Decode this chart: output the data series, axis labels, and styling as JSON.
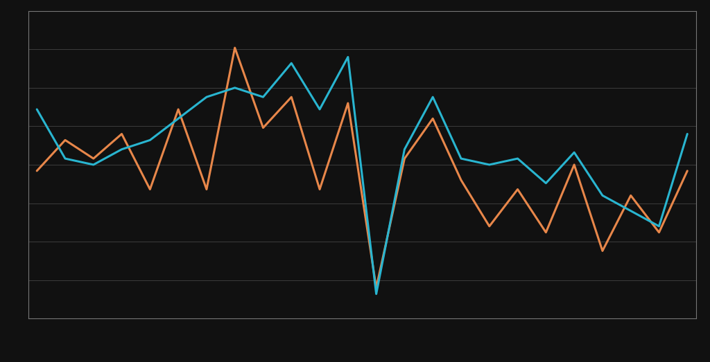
{
  "orange_y": [
    48,
    58,
    52,
    60,
    42,
    68,
    42,
    88,
    62,
    72,
    42,
    70,
    10,
    52,
    65,
    45,
    30,
    42,
    28,
    50,
    22,
    40,
    28,
    48
  ],
  "blue_y": [
    68,
    52,
    50,
    55,
    58,
    65,
    72,
    75,
    72,
    83,
    68,
    85,
    8,
    55,
    72,
    52,
    50,
    52,
    44,
    54,
    40,
    35,
    30,
    60
  ],
  "orange_color": "#E8874A",
  "blue_color": "#29B5D0",
  "bg_color": "#111111",
  "grid_color": "#444444",
  "border_color": "#777777",
  "line_width": 2.2,
  "ylim_min": 0,
  "ylim_max": 100,
  "n_gridlines": 9
}
